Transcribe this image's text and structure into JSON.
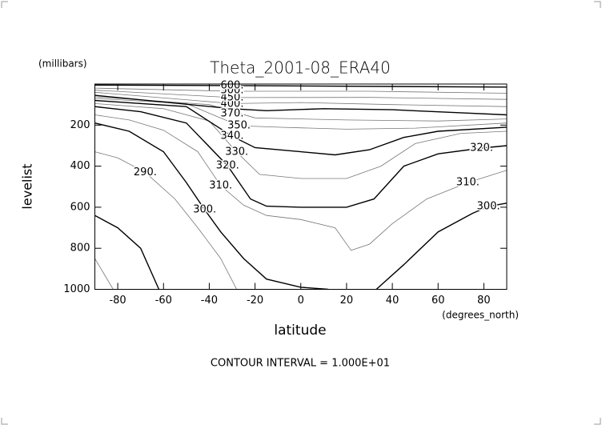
{
  "chart_data": {
    "type": "contour",
    "title": "Theta_2001-08_ERA40",
    "x_label": "latitude",
    "x_unit": "(degrees_north)",
    "y_label": "levelist",
    "y_unit": "(millibars)",
    "footer": "CONTOUR INTERVAL = 1.000E+01",
    "xlim": [
      -90,
      90
    ],
    "xticks": [
      -80,
      -60,
      -40,
      -20,
      0,
      20,
      40,
      60,
      80
    ],
    "ylim": [
      1000,
      0
    ],
    "yticks": [
      200,
      400,
      600,
      800,
      1000
    ],
    "color": "#000000",
    "thin_color": "#777777",
    "contours": [
      {
        "bold": false,
        "x": [
          -90,
          -82
        ],
        "values": [
          850,
          1000
        ],
        "labels": []
      },
      {
        "bold": true,
        "x": [
          -90,
          -80,
          -70,
          -62
        ],
        "values": [
          640,
          700,
          800,
          1000
        ],
        "labels": []
      },
      {
        "bold": false,
        "x": [
          -90,
          -80,
          -68,
          -55,
          -45,
          -35,
          -28
        ],
        "values": [
          330,
          360,
          430,
          560,
          700,
          850,
          1000
        ],
        "labels": [
          {
            "text": "290.",
            "x": -68,
            "y": 430
          }
        ]
      },
      {
        "bold": true,
        "x": [
          -90,
          -75,
          -60,
          -50,
          -42,
          -35,
          -25,
          -15,
          0,
          12,
          22,
          33,
          45,
          60,
          75,
          82,
          90
        ],
        "values": [
          190,
          230,
          330,
          480,
          612,
          720,
          850,
          950,
          990,
          1000,
          null,
          1000,
          880,
          720,
          630,
          596,
          580
        ],
        "labels": [
          {
            "text": "300.",
            "x": -42,
            "y": 612
          },
          {
            "text": "300.",
            "x": 82,
            "y": 596
          }
        ]
      },
      {
        "bold": false,
        "x": [
          -90,
          -75,
          -60,
          -45,
          -35,
          -25,
          -15,
          0,
          15,
          22,
          30,
          40,
          55,
          73,
          90
        ],
        "values": [
          150,
          175,
          225,
          330,
          495,
          590,
          640,
          660,
          700,
          810,
          780,
          680,
          560,
          480,
          420
        ],
        "labels": [
          {
            "text": "310.",
            "x": -35,
            "y": 495
          },
          {
            "text": "310.",
            "x": 73,
            "y": 480
          }
        ]
      },
      {
        "bold": true,
        "x": [
          -90,
          -70,
          -50,
          -32,
          -22,
          -15,
          0,
          20,
          32,
          45,
          60,
          79,
          90
        ],
        "values": [
          110,
          135,
          190,
          398,
          560,
          595,
          600,
          600,
          560,
          400,
          340,
          312,
          300
        ],
        "labels": [
          {
            "text": "320.",
            "x": -32,
            "y": 398
          },
          {
            "text": "320.",
            "x": 79,
            "y": 312
          }
        ]
      },
      {
        "bold": false,
        "x": [
          -90,
          -60,
          -40,
          -28,
          -18,
          0,
          20,
          35,
          50,
          70,
          90
        ],
        "values": [
          95,
          120,
          180,
          332,
          440,
          460,
          460,
          400,
          290,
          240,
          230
        ],
        "labels": [
          {
            "text": "330.",
            "x": -28,
            "y": 332
          }
        ]
      },
      {
        "bold": true,
        "x": [
          -90,
          -50,
          -30,
          -20,
          0,
          15,
          30,
          45,
          60,
          90
        ],
        "values": [
          80,
          110,
          254,
          310,
          330,
          345,
          320,
          260,
          230,
          210
        ],
        "labels": [
          {
            "text": "340.",
            "x": -30,
            "y": 254
          }
        ]
      },
      {
        "bold": false,
        "x": [
          -90,
          -50,
          -27,
          -10,
          20,
          50,
          90
        ],
        "values": [
          70,
          95,
          203,
          210,
          220,
          215,
          190
        ],
        "labels": [
          {
            "text": "350.",
            "x": -27,
            "y": 203
          }
        ]
      },
      {
        "bold": false,
        "x": [
          -90,
          -40,
          -20,
          20,
          60,
          90
        ],
        "values": [
          62,
          100,
          165,
          175,
          180,
          170
        ],
        "labels": []
      },
      {
        "bold": true,
        "x": [
          -90,
          -30,
          -15,
          10,
          40,
          70,
          90
        ],
        "values": [
          55,
          120,
          130,
          120,
          125,
          140,
          150
        ],
        "labels": [
          {
            "text": "370.",
            "x": -30,
            "y": 145
          }
        ]
      },
      {
        "bold": false,
        "x": [
          -90,
          -30,
          0,
          40,
          90
        ],
        "values": [
          40,
          95,
          90,
          100,
          110
        ],
        "labels": [
          {
            "text": "400.",
            "x": -30,
            "y": 98
          }
        ]
      },
      {
        "bold": false,
        "x": [
          -90,
          -30,
          30,
          90
        ],
        "values": [
          30,
          66,
          65,
          75
        ],
        "labels": [
          {
            "text": "450.",
            "x": -30,
            "y": 66
          }
        ]
      },
      {
        "bold": false,
        "x": [
          -90,
          -30,
          30,
          90
        ],
        "values": [
          20,
          35,
          35,
          45
        ],
        "labels": [
          {
            "text": "500.",
            "x": -30,
            "y": 31
          }
        ]
      },
      {
        "bold": true,
        "x": [
          -90,
          -20,
          90
        ],
        "values": [
          5,
          8,
          15
        ],
        "labels": [
          {
            "text": "600.",
            "x": -30,
            "y": 8
          }
        ]
      }
    ]
  }
}
